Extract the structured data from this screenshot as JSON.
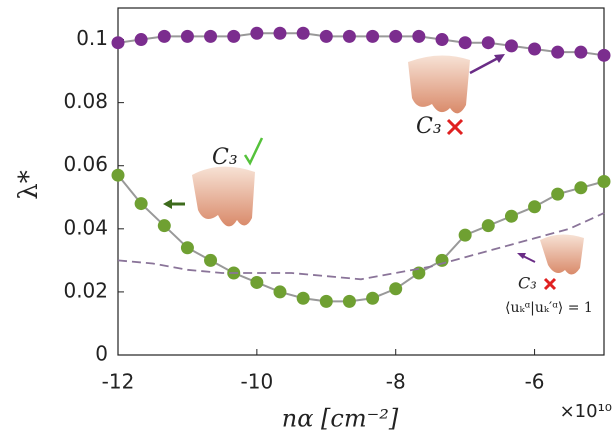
{
  "chart_data": {
    "type": "line",
    "x_label": "nα [cm⁻²]",
    "y_label": "λ*",
    "x_multiplier": "×10¹⁰",
    "xlim": [
      -12,
      -5
    ],
    "ylim": [
      0,
      0.11
    ],
    "xticks": [
      -12,
      -10,
      -8,
      -6
    ],
    "yticks": [
      0,
      0.02,
      0.04,
      0.06,
      0.08,
      0.1
    ],
    "annotations": [
      "C₃",
      "C₃",
      "C₃",
      "⟨uₖᵅ|uₖ′ᵅ⟩ = 1"
    ],
    "series": [
      {
        "color": "#7b2d8e",
        "markers": true,
        "linestyle": "solid",
        "x": [
          -12,
          -11.667,
          -11.333,
          -11,
          -10.667,
          -10.333,
          -10,
          -9.667,
          -9.333,
          -9,
          -8.667,
          -8.333,
          -8,
          -7.667,
          -7.333,
          -7,
          -6.667,
          -6.333,
          -6,
          -5.667,
          -5.333,
          -5
        ],
        "values": [
          0.099,
          0.1,
          0.101,
          0.101,
          0.101,
          0.101,
          0.102,
          0.102,
          0.102,
          0.101,
          0.101,
          0.101,
          0.101,
          0.101,
          0.1,
          0.099,
          0.099,
          0.098,
          0.097,
          0.096,
          0.096,
          0.095
        ]
      },
      {
        "color": "#6fa032",
        "markers": true,
        "linestyle": "solid",
        "x": [
          -12,
          -11.667,
          -11.333,
          -11,
          -10.667,
          -10.333,
          -10,
          -9.667,
          -9.333,
          -9,
          -8.667,
          -8.333,
          -8,
          -7.667,
          -7.333,
          -7,
          -6.667,
          -6.333,
          -6,
          -5.667,
          -5.333,
          -5
        ],
        "values": [
          0.057,
          0.048,
          0.041,
          0.034,
          0.03,
          0.026,
          0.023,
          0.02,
          0.018,
          0.017,
          0.017,
          0.018,
          0.021,
          0.026,
          0.03,
          0.038,
          0.041,
          0.044,
          0.047,
          0.051,
          0.053,
          0.055
        ]
      },
      {
        "color": "#8a7499",
        "markers": false,
        "linestyle": "dashed",
        "x": [
          -12,
          -11.5,
          -11,
          -10.5,
          -10,
          -9.5,
          -9,
          -8.5,
          -8,
          -7.5,
          -7,
          -6.5,
          -6,
          -5.5,
          -5
        ],
        "values": [
          0.03,
          0.029,
          0.027,
          0.026,
          0.026,
          0.026,
          0.025,
          0.024,
          0.026,
          0.028,
          0.031,
          0.034,
          0.037,
          0.04,
          0.045
        ]
      }
    ]
  }
}
